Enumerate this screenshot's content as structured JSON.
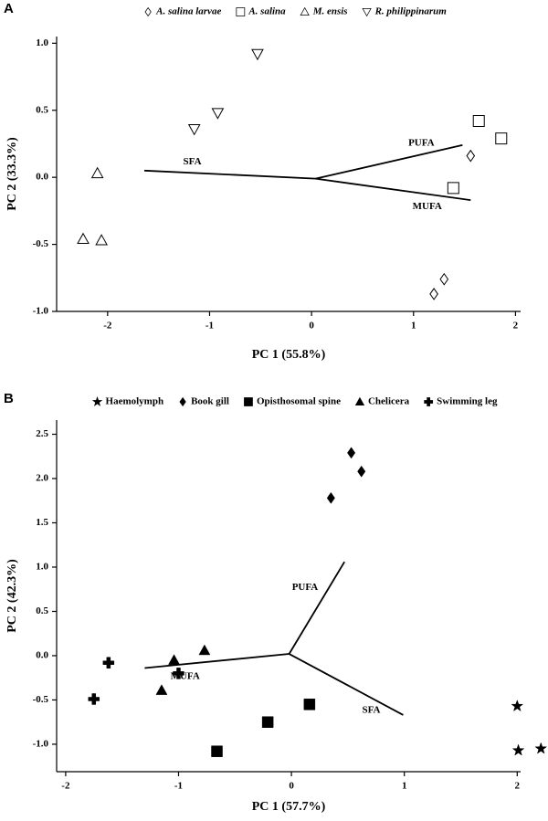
{
  "chart_data": [
    {
      "type": "scatter",
      "panel": "A",
      "x_label": "PC 1 (55.8%)",
      "y_label": "PC 2 (33.3%)",
      "xlim": [
        -2.5,
        2.05
      ],
      "ylim": [
        -1.0,
        1.05
      ],
      "xticks": [
        -2,
        -1,
        0,
        1,
        2
      ],
      "yticks": [
        {
          "value": 1,
          "label": "1.0"
        },
        0.5,
        {
          "value": 0,
          "label": "0.0"
        },
        -0.5,
        {
          "value": -1,
          "label": "-1.0"
        }
      ],
      "series": [
        {
          "name": "A. salina larvae",
          "marker": "diamond-open",
          "color": "#000000",
          "x": [
            1.56,
            1.3,
            1.2
          ],
          "y": [
            0.16,
            -0.76,
            -0.87
          ]
        },
        {
          "name": "A. salina",
          "marker": "square-open",
          "color": "#000000",
          "x": [
            1.64,
            1.86,
            1.39
          ],
          "y": [
            0.42,
            0.29,
            -0.08
          ]
        },
        {
          "name": "M. ensis",
          "marker": "triangle-up-open",
          "color": "#000000",
          "x": [
            -2.1,
            -2.24,
            -2.06
          ],
          "y": [
            0.03,
            -0.46,
            -0.47
          ]
        },
        {
          "name": "R.  philippinarum",
          "marker": "triangle-down-open",
          "color": "#000000",
          "x": [
            -0.53,
            -0.92,
            -1.15
          ],
          "y": [
            0.92,
            0.48,
            0.36
          ]
        }
      ],
      "vectors": [
        {
          "name": "SFA",
          "x": [
            0.04,
            -1.64
          ],
          "y": [
            -0.01,
            0.05
          ]
        },
        {
          "name": "PUFA",
          "x": [
            0.04,
            1.48
          ],
          "y": [
            -0.01,
            0.24
          ]
        },
        {
          "name": "MUFA",
          "x": [
            0.04,
            1.56
          ],
          "y": [
            -0.01,
            -0.17
          ]
        }
      ]
    },
    {
      "type": "scatter",
      "panel": "B",
      "x_label": "PC 1 (57.7%)",
      "y_label": "PC 2 (42.3%)",
      "xlim": [
        -2.08,
        2.03
      ],
      "ylim": [
        -1.31,
        2.66
      ],
      "xticks": [
        -2,
        -1,
        0,
        1,
        2
      ],
      "yticks": [
        2.5,
        {
          "value": 2,
          "label": "2.0"
        },
        1.5,
        {
          "value": 1,
          "label": "1.0"
        },
        0.5,
        {
          "value": 0,
          "label": "0.0"
        },
        -0.5,
        {
          "value": -1,
          "label": "-1.0"
        }
      ],
      "series": [
        {
          "name": "Haemolymph",
          "marker": "star",
          "color": "#000000",
          "x": [
            2.0,
            2.01,
            2.21
          ],
          "y": [
            -0.57,
            -1.07,
            -1.05
          ]
        },
        {
          "name": "Book gill",
          "marker": "diamond",
          "color": "#000000",
          "x": [
            0.53,
            0.62,
            0.35
          ],
          "y": [
            2.29,
            2.08,
            1.78
          ]
        },
        {
          "name": "Opisthosomal spine",
          "marker": "square",
          "color": "#000000",
          "x": [
            0.16,
            -0.21,
            -0.66
          ],
          "y": [
            -0.55,
            -0.75,
            -1.08
          ]
        },
        {
          "name": "Chelicera",
          "marker": "triangle-up",
          "color": "#000000",
          "x": [
            -0.77,
            -1.04,
            -1.15
          ],
          "y": [
            0.06,
            -0.05,
            -0.39
          ]
        },
        {
          "name": "Swimming leg",
          "marker": "cross",
          "color": "#000000",
          "x": [
            -1.62,
            -1.0,
            -1.75
          ],
          "y": [
            -0.08,
            -0.2,
            -0.49
          ]
        }
      ],
      "vectors": [
        {
          "name": "PUFA",
          "x": [
            -0.02,
            0.47
          ],
          "y": [
            0.02,
            1.06
          ]
        },
        {
          "name": "SFA",
          "x": [
            -0.02,
            0.99
          ],
          "y": [
            0.02,
            -0.67
          ]
        },
        {
          "name": "MUFA",
          "x": [
            -0.02,
            -1.3
          ],
          "y": [
            0.02,
            -0.14
          ]
        }
      ]
    }
  ]
}
